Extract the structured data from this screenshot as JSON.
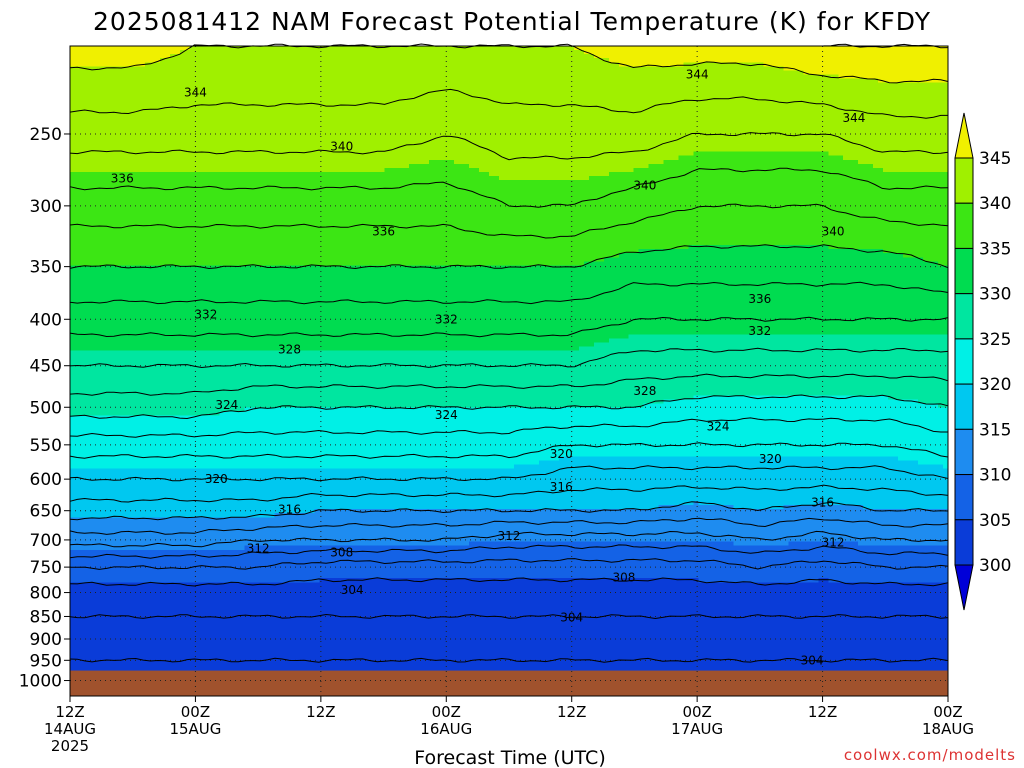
{
  "chart_data": {
    "type": "heatmap",
    "title": "2025081412 NAM Forecast Potential Temperature (K) for KFDY",
    "xlabel": "Forecast Time (UTC)",
    "ylabel": "",
    "credit": "coolwx.com/modelts",
    "y_scale": "pressure (log, inverted)",
    "ylim": [
      1040,
      200
    ],
    "y_ticks": [
      "250",
      "300",
      "350",
      "400",
      "450",
      "500",
      "550",
      "600",
      "650",
      "700",
      "750",
      "800",
      "850",
      "900",
      "950",
      "1000"
    ],
    "x_ticks": [
      {
        "line1": "12Z",
        "line2": "14AUG",
        "line3": "2025"
      },
      {
        "line1": "00Z",
        "line2": "15AUG",
        "line3": ""
      },
      {
        "line1": "12Z",
        "line2": "",
        "line3": ""
      },
      {
        "line1": "00Z",
        "line2": "16AUG",
        "line3": ""
      },
      {
        "line1": "12Z",
        "line2": "",
        "line3": ""
      },
      {
        "line1": "00Z",
        "line2": "17AUG",
        "line3": ""
      },
      {
        "line1": "12Z",
        "line2": "",
        "line3": ""
      },
      {
        "line1": "00Z",
        "line2": "18AUG",
        "line3": ""
      }
    ],
    "x_hours": [
      0,
      12,
      24,
      36,
      48,
      60,
      72,
      84
    ],
    "colorbar": {
      "labels": [
        "300",
        "305",
        "310",
        "315",
        "320",
        "325",
        "330",
        "335",
        "340",
        "345"
      ],
      "bands": [
        {
          "min": 295,
          "max": 300,
          "color": "#0000d8"
        },
        {
          "min": 300,
          "max": 305,
          "color": "#0a3cd8"
        },
        {
          "min": 305,
          "max": 310,
          "color": "#1462e6"
        },
        {
          "min": 310,
          "max": 315,
          "color": "#1e8cf0"
        },
        {
          "min": 315,
          "max": 320,
          "color": "#00c8f0"
        },
        {
          "min": 320,
          "max": 325,
          "color": "#00f0e6"
        },
        {
          "min": 325,
          "max": 330,
          "color": "#00e6a0"
        },
        {
          "min": 330,
          "max": 335,
          "color": "#00dc50"
        },
        {
          "min": 335,
          "max": 340,
          "color": "#3ce614"
        },
        {
          "min": 340,
          "max": 345,
          "color": "#a0f000"
        },
        {
          "min": 345,
          "max": 350,
          "color": "#f0f000"
        }
      ]
    },
    "ground_color": "#a0522d",
    "contour_interval": 2,
    "contour_labels": [
      {
        "value": "344",
        "hour": 12,
        "p": 225
      },
      {
        "value": "344",
        "hour": 60,
        "p": 215
      },
      {
        "value": "344",
        "hour": 75,
        "p": 240
      },
      {
        "value": "340",
        "hour": 26,
        "p": 258
      },
      {
        "value": "340",
        "hour": 55,
        "p": 285
      },
      {
        "value": "340",
        "hour": 73,
        "p": 320
      },
      {
        "value": "336",
        "hour": 5,
        "p": 280
      },
      {
        "value": "336",
        "hour": 30,
        "p": 320
      },
      {
        "value": "336",
        "hour": 66,
        "p": 380
      },
      {
        "value": "332",
        "hour": 13,
        "p": 395
      },
      {
        "value": "332",
        "hour": 36,
        "p": 400
      },
      {
        "value": "332",
        "hour": 66,
        "p": 412
      },
      {
        "value": "328",
        "hour": 21,
        "p": 432
      },
      {
        "value": "328",
        "hour": 55,
        "p": 480
      },
      {
        "value": "324",
        "hour": 15,
        "p": 497
      },
      {
        "value": "324",
        "hour": 36,
        "p": 510
      },
      {
        "value": "324",
        "hour": 62,
        "p": 525
      },
      {
        "value": "320",
        "hour": 47,
        "p": 563
      },
      {
        "value": "320",
        "hour": 67,
        "p": 570
      },
      {
        "value": "320",
        "hour": 14,
        "p": 600
      },
      {
        "value": "316",
        "hour": 21,
        "p": 648
      },
      {
        "value": "316",
        "hour": 47,
        "p": 612
      },
      {
        "value": "316",
        "hour": 72,
        "p": 637
      },
      {
        "value": "312",
        "hour": 18,
        "p": 715
      },
      {
        "value": "312",
        "hour": 42,
        "p": 693
      },
      {
        "value": "312",
        "hour": 73,
        "p": 705
      },
      {
        "value": "308",
        "hour": 26,
        "p": 723
      },
      {
        "value": "308",
        "hour": 53,
        "p": 770
      },
      {
        "value": "304",
        "hour": 27,
        "p": 795
      },
      {
        "value": "304",
        "hour": 48,
        "p": 852
      },
      {
        "value": "304",
        "hour": 71,
        "p": 950
      }
    ],
    "profiles": {
      "hours": [
        0,
        6,
        12,
        18,
        24,
        30,
        36,
        42,
        48,
        54,
        60,
        66,
        72,
        78,
        84
      ],
      "levels": [
        1000,
        950,
        900,
        850,
        800,
        750,
        700,
        650,
        600,
        550,
        500,
        450,
        400,
        350,
        300,
        250,
        200
      ],
      "theta": [
        [
          299,
          301,
          302,
          303,
          304,
          307,
          312,
          316,
          319,
          322,
          326,
          329,
          332,
          335,
          338,
          342,
          346
        ],
        [
          300,
          301,
          302,
          303,
          304,
          307,
          312,
          316,
          319,
          322,
          326,
          329,
          332,
          335,
          338,
          342,
          346
        ],
        [
          300,
          301,
          302,
          303,
          304,
          307,
          312,
          316,
          319,
          322,
          326,
          329,
          332,
          335,
          338,
          342,
          345
        ],
        [
          300,
          301,
          302,
          303,
          304,
          307,
          311,
          316,
          319,
          322,
          325,
          329,
          332,
          335,
          338,
          342,
          345
        ],
        [
          300,
          301,
          302,
          303,
          304,
          306,
          311,
          315,
          319,
          322,
          325,
          329,
          332,
          335,
          338,
          342,
          345
        ],
        [
          300,
          301,
          302,
          303,
          304,
          306,
          311,
          315,
          319,
          322,
          325,
          329,
          332,
          335,
          338,
          342,
          345
        ],
        [
          300,
          301,
          302,
          303,
          304,
          306,
          311,
          315,
          319,
          322,
          325,
          329,
          332,
          335,
          338,
          341,
          345
        ],
        [
          300,
          301,
          302,
          303,
          304,
          306,
          310,
          315,
          319,
          322,
          325,
          329,
          332,
          335,
          339,
          342,
          345
        ],
        [
          300,
          301,
          302,
          303,
          304,
          306,
          310,
          315,
          318,
          321,
          325,
          329,
          332,
          335,
          339,
          342,
          345
        ],
        [
          300,
          301,
          302,
          303,
          304,
          306,
          310,
          315,
          318,
          321,
          325,
          328,
          331,
          334,
          338,
          342,
          346
        ],
        [
          300,
          301,
          302,
          303,
          304,
          306,
          310,
          314,
          318,
          321,
          324,
          328,
          331,
          334,
          337,
          341,
          346
        ],
        [
          300,
          301,
          302,
          303,
          304,
          307,
          311,
          315,
          318,
          321,
          324,
          328,
          331,
          334,
          337,
          341,
          346
        ],
        [
          300,
          301,
          302,
          303,
          304,
          306,
          310,
          314,
          318,
          321,
          324,
          328,
          331,
          334,
          337,
          341,
          347
        ],
        [
          300,
          301,
          302,
          303,
          304,
          307,
          311,
          315,
          318,
          321,
          324,
          328,
          331,
          334,
          338,
          342,
          347
        ],
        [
          300,
          301,
          302,
          303,
          304,
          307,
          311,
          315,
          319,
          322,
          325,
          328,
          331,
          335,
          338,
          342,
          347
        ]
      ]
    }
  }
}
